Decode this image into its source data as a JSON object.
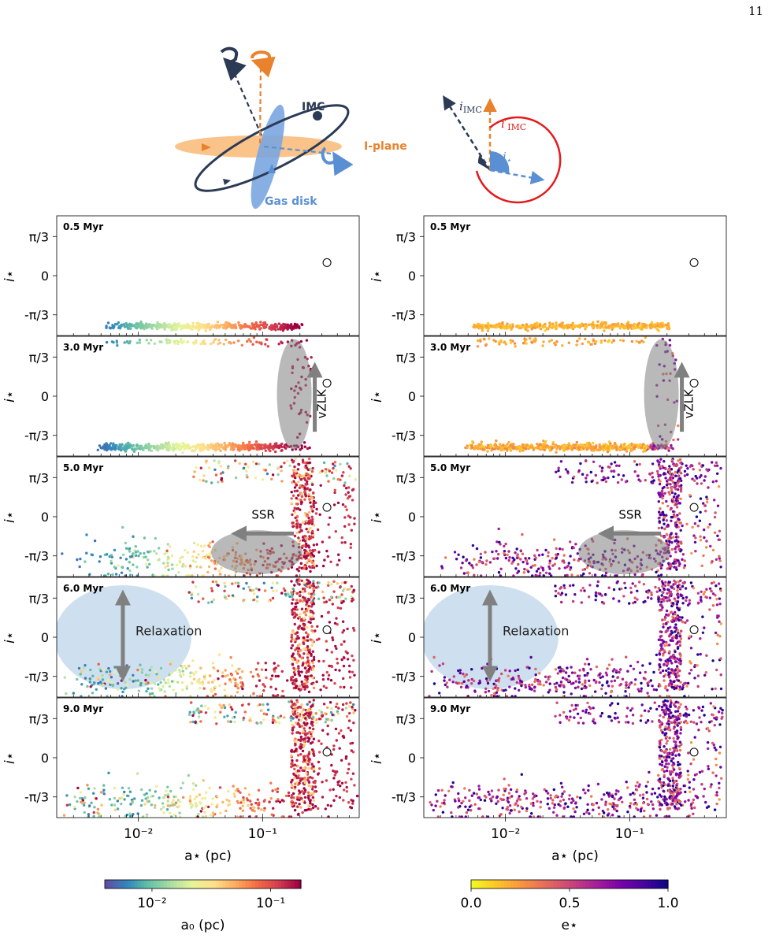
{
  "page_number": "11",
  "schematic": {
    "labels": {
      "imc": "IMC",
      "iplane": "I-plane",
      "gasdisk": "Gas disk"
    },
    "angles": {
      "i_imc_base": "i",
      "i_imc_sub": "IMC",
      "i_imc_prime_base": "i′",
      "i_imc_prime_sub": "IMC",
      "i_star_base": "i",
      "i_star_sub": "⋆"
    },
    "colors": {
      "navy": "#2b3a55",
      "orange": "#e8822c",
      "blue": "#5b8fd4",
      "red": "#e41a1c"
    }
  },
  "chart_data": [
    {
      "type": "scatter",
      "column": "left",
      "xlabel": "a⋆ (pc)",
      "ylabel": "i⋆",
      "xscale": "log",
      "xlim": [
        0.0022,
        0.6
      ],
      "ylim": [
        -1.6,
        1.6
      ],
      "xticks": [
        {
          "value": 0.01,
          "label": "10⁻²"
        },
        {
          "value": 0.1,
          "label": "10⁻¹"
        }
      ],
      "yticks": [
        {
          "value": 1.047,
          "label": "π/3"
        },
        {
          "value": 0,
          "label": "0"
        },
        {
          "value": -1.047,
          "label": "-π/3"
        }
      ],
      "color_by": "a0",
      "colorbar": {
        "label": "a₀ (pc)",
        "scale": "log",
        "range": [
          0.004,
          0.18
        ],
        "cmap": "Spectral_r",
        "ticks": [
          {
            "value": 0.01,
            "label": "10⁻²"
          },
          {
            "value": 0.1,
            "label": "10⁻¹"
          }
        ]
      },
      "panels": [
        {
          "time": "0.5 Myr",
          "imc": {
            "a": 0.33,
            "i": 0.35
          }
        },
        {
          "time": "3.0 Myr",
          "imc": {
            "a": 0.33,
            "i": 0.35
          },
          "annotation": {
            "text": "vZLK",
            "a_center": 0.18,
            "i_center": 0.1
          }
        },
        {
          "time": "5.0 Myr",
          "imc": {
            "a": 0.33,
            "i": 0.25
          },
          "annotation": {
            "text": "SSR",
            "a_center": 0.09,
            "i_center": -0.95
          }
        },
        {
          "time": "6.0 Myr",
          "imc": {
            "a": 0.33,
            "i": 0.2
          },
          "annotation": {
            "text": "Relaxation",
            "a_center": 0.007,
            "i_center": 0.0
          }
        },
        {
          "time": "9.0 Myr",
          "imc": {
            "a": 0.33,
            "i": 0.15
          }
        }
      ]
    },
    {
      "type": "scatter",
      "column": "right",
      "xlabel": "a⋆ (pc)",
      "ylabel": "i⋆",
      "xscale": "log",
      "xlim": [
        0.0022,
        0.6
      ],
      "ylim": [
        -1.6,
        1.6
      ],
      "xticks": [
        {
          "value": 0.01,
          "label": "10⁻²"
        },
        {
          "value": 0.1,
          "label": "10⁻¹"
        }
      ],
      "yticks": [
        {
          "value": 1.047,
          "label": "π/3"
        },
        {
          "value": 0,
          "label": "0"
        },
        {
          "value": -1.047,
          "label": "-π/3"
        }
      ],
      "color_by": "e",
      "colorbar": {
        "label": "e⋆",
        "scale": "linear",
        "range": [
          0,
          1
        ],
        "cmap": "plasma_r",
        "ticks": [
          {
            "value": 0,
            "label": "0.0"
          },
          {
            "value": 0.5,
            "label": "0.5"
          },
          {
            "value": 1,
            "label": "1.0"
          }
        ]
      },
      "panels": [
        {
          "time": "0.5 Myr",
          "imc": {
            "a": 0.33,
            "i": 0.35
          }
        },
        {
          "time": "3.0 Myr",
          "imc": {
            "a": 0.33,
            "i": 0.35
          },
          "annotation": {
            "text": "vZLK",
            "a_center": 0.18,
            "i_center": 0.1
          }
        },
        {
          "time": "5.0 Myr",
          "imc": {
            "a": 0.33,
            "i": 0.25
          },
          "annotation": {
            "text": "SSR",
            "a_center": 0.09,
            "i_center": -0.95
          }
        },
        {
          "time": "6.0 Myr",
          "imc": {
            "a": 0.33,
            "i": 0.2
          },
          "annotation": {
            "text": "Relaxation",
            "a_center": 0.007,
            "i_center": 0.0
          }
        },
        {
          "time": "9.0 Myr",
          "imc": {
            "a": 0.33,
            "i": 0.15
          }
        }
      ]
    }
  ]
}
